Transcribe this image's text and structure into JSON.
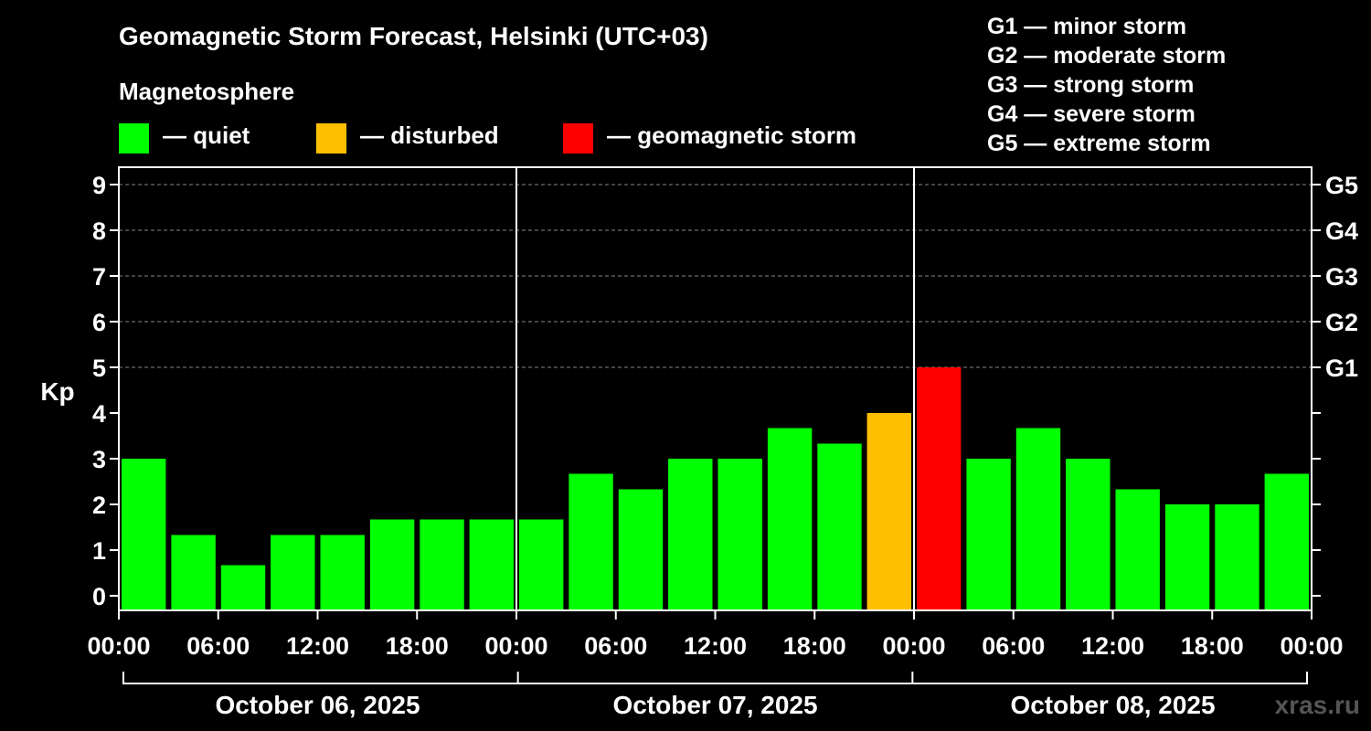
{
  "chart_data": {
    "type": "bar",
    "title": "Geomagnetic Storm Forecast, Helsinki (UTC+03)",
    "legend_title": "Magnetosphere",
    "legend": [
      {
        "label": "— quiet",
        "color": "#00ff00"
      },
      {
        "label": "— disturbed",
        "color": "#ffbf00"
      },
      {
        "label": "— geomagnetic storm",
        "color": "#ff0000"
      }
    ],
    "g_scale": [
      "G1 — minor storm",
      "G2 — moderate storm",
      "G3 — strong storm",
      "G4 — severe storm",
      "G5 — extreme storm"
    ],
    "ylabel": "Kp",
    "ylim": [
      0,
      9
    ],
    "y_ticks": [
      "0",
      "1",
      "2",
      "3",
      "4",
      "5",
      "6",
      "7",
      "8",
      "9"
    ],
    "right_ticks": [
      {
        "kp": 5,
        "label": "G1"
      },
      {
        "kp": 6,
        "label": "G2"
      },
      {
        "kp": 7,
        "label": "G3"
      },
      {
        "kp": 8,
        "label": "G4"
      },
      {
        "kp": 9,
        "label": "G5"
      }
    ],
    "x_ticks": [
      "00:00",
      "06:00",
      "12:00",
      "18:00",
      "00:00",
      "06:00",
      "12:00",
      "18:00",
      "00:00",
      "06:00",
      "12:00",
      "18:00",
      "00:00"
    ],
    "days": [
      "October 06, 2025",
      "October 07, 2025",
      "October 08, 2025"
    ],
    "interval_hours": 3,
    "values": [
      3.0,
      1.33,
      0.67,
      1.33,
      1.33,
      1.67,
      1.67,
      1.67,
      1.67,
      2.67,
      2.33,
      3.0,
      3.0,
      3.67,
      3.33,
      4.0,
      5.0,
      3.0,
      3.67,
      3.0,
      2.33,
      2.0,
      2.0,
      2.67
    ],
    "watermark": "xras.ru"
  }
}
